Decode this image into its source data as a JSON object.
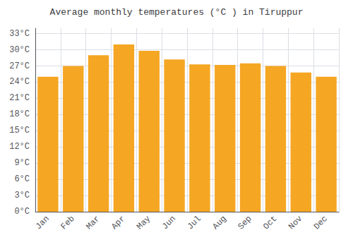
{
  "chart_data": {
    "type": "bar",
    "title": "Average monthly temperatures (°C ) in Tiruppur",
    "categories": [
      "Jan",
      "Feb",
      "Mar",
      "Apr",
      "May",
      "Jun",
      "Jul",
      "Aug",
      "Sep",
      "Oct",
      "Nov",
      "Dec"
    ],
    "values": [
      25.0,
      27.0,
      29.0,
      31.0,
      29.8,
      28.2,
      27.3,
      27.2,
      27.5,
      27.0,
      25.8,
      25.0
    ],
    "color": "#F5A623",
    "ylim": [
      0,
      34
    ],
    "yticks": [
      {
        "value": 0,
        "label": "0°C"
      },
      {
        "value": 3,
        "label": "3°C"
      },
      {
        "value": 6,
        "label": "6°C"
      },
      {
        "value": 9,
        "label": "9°C"
      },
      {
        "value": 12,
        "label": "12°C"
      },
      {
        "value": 15,
        "label": "15°C"
      },
      {
        "value": 18,
        "label": "18°C"
      },
      {
        "value": 21,
        "label": "21°C"
      },
      {
        "value": 24,
        "label": "24°C"
      },
      {
        "value": 27,
        "label": "27°C"
      },
      {
        "value": 30,
        "label": "30°C"
      },
      {
        "value": 33,
        "label": "33°C"
      }
    ],
    "grid": true
  }
}
